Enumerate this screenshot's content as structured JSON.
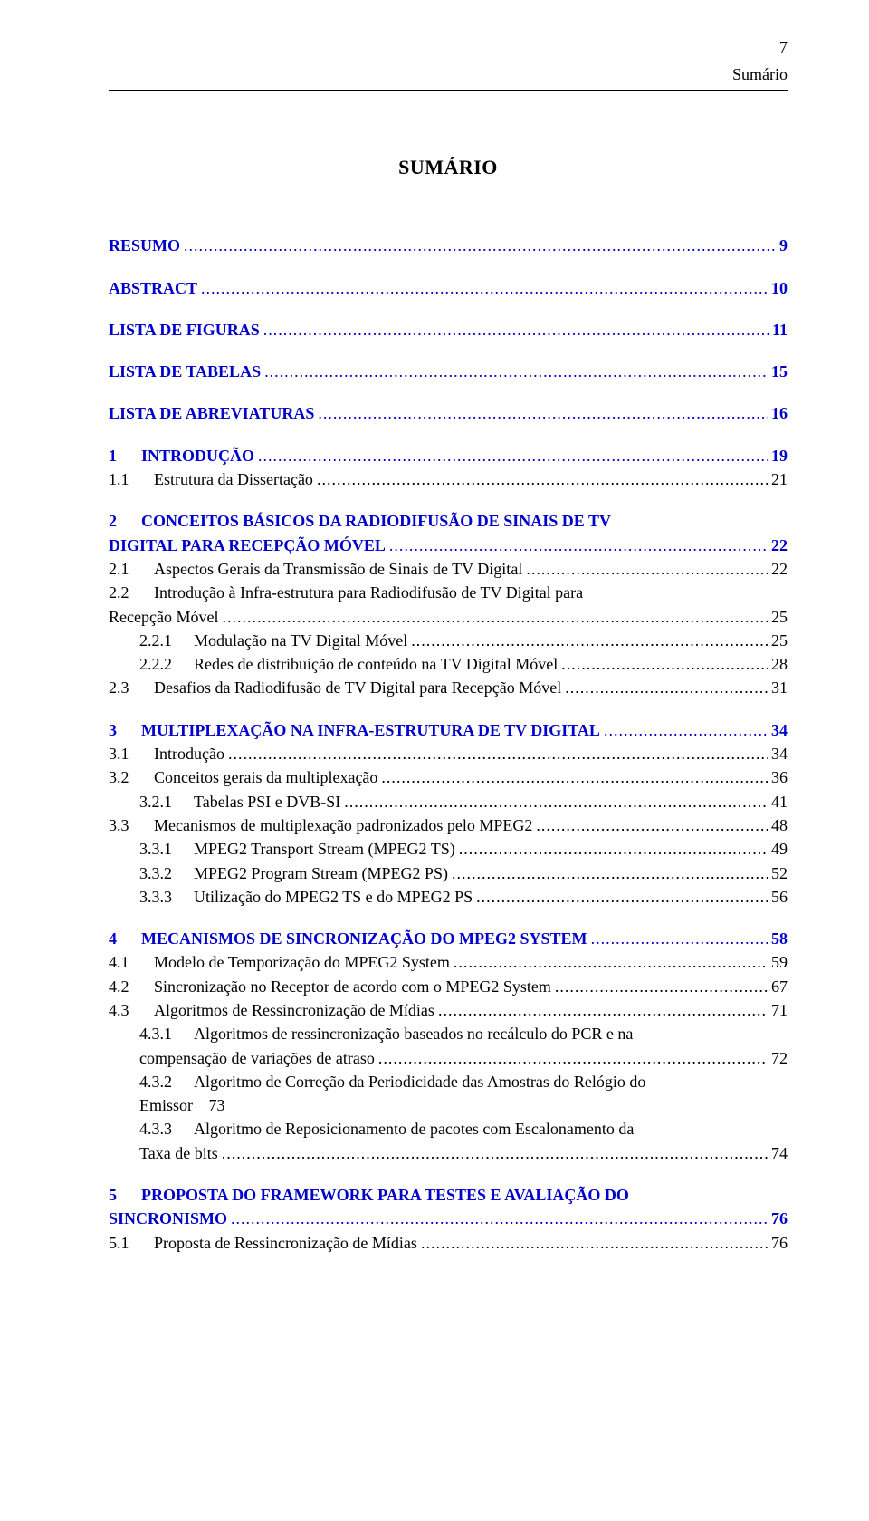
{
  "page_number": "7",
  "running_head": "Sumário",
  "title": "SUMÁRIO",
  "leader_char": ".",
  "entries": [
    {
      "level": 1,
      "style": "blue",
      "num": "",
      "text": "RESUMO",
      "page": "9",
      "gap_before": false
    },
    {
      "level": 1,
      "style": "blue",
      "num": "",
      "text": "ABSTRACT",
      "page": "10",
      "gap_before": true
    },
    {
      "level": 1,
      "style": "blue",
      "num": "",
      "text": "LISTA DE FIGURAS",
      "page": "11",
      "gap_before": true
    },
    {
      "level": 1,
      "style": "blue",
      "num": "",
      "text": "LISTA DE TABELAS",
      "page": "15",
      "gap_before": true
    },
    {
      "level": 1,
      "style": "blue",
      "num": "",
      "text": "LISTA DE ABREVIATURAS",
      "page": "16",
      "gap_before": true
    },
    {
      "level": 1,
      "style": "blue",
      "num": "1",
      "text": "INTRODUÇÃO",
      "page": "19",
      "gap_before": true
    },
    {
      "level": 2,
      "style": "plain",
      "num": "1.1",
      "text": "Estrutura da Dissertação",
      "page": "21",
      "gap_before": false
    },
    {
      "level": 1,
      "style": "blue",
      "num": "2",
      "text": "CONCEITOS BÁSICOS DA RADIODIFUSÃO DE SINAIS DE TV DIGITAL PARA RECEPÇÃO MÓVEL",
      "page": "22",
      "gap_before": true,
      "wrap": true
    },
    {
      "level": 2,
      "style": "plain",
      "num": "2.1",
      "text": "Aspectos Gerais da Transmissão de Sinais de TV Digital",
      "page": "22",
      "gap_before": false
    },
    {
      "level": 2,
      "style": "plain",
      "num": "2.2",
      "text": "Introdução à Infra-estrutura para Radiodifusão de TV Digital para Recepção Móvel",
      "page": "25",
      "gap_before": false,
      "wrap": true
    },
    {
      "level": 3,
      "style": "plain",
      "num": "2.2.1",
      "text": "Modulação na TV Digital Móvel",
      "page": "25",
      "gap_before": false
    },
    {
      "level": 3,
      "style": "plain",
      "num": "2.2.2",
      "text": "Redes de distribuição de conteúdo na TV Digital Móvel",
      "page": "28",
      "gap_before": false
    },
    {
      "level": 2,
      "style": "plain",
      "num": "2.3",
      "text": "Desafios da Radiodifusão de TV Digital para Recepção Móvel",
      "page": "31",
      "gap_before": false
    },
    {
      "level": 1,
      "style": "blue",
      "num": "3",
      "text": "MULTIPLEXAÇÃO NA INFRA-ESTRUTURA DE TV DIGITAL",
      "page": "34",
      "gap_before": true
    },
    {
      "level": 2,
      "style": "plain",
      "num": "3.1",
      "text": "Introdução",
      "page": "34",
      "gap_before": false
    },
    {
      "level": 2,
      "style": "plain",
      "num": "3.2",
      "text": "Conceitos gerais da multiplexação",
      "page": "36",
      "gap_before": false
    },
    {
      "level": 3,
      "style": "plain",
      "num": "3.2.1",
      "text": "Tabelas PSI e DVB-SI",
      "page": "41",
      "gap_before": false
    },
    {
      "level": 2,
      "style": "plain",
      "num": "3.3",
      "text": "Mecanismos de multiplexação padronizados pelo MPEG2",
      "page": "48",
      "gap_before": false
    },
    {
      "level": 3,
      "style": "plain",
      "num": "3.3.1",
      "text": "MPEG2 Transport Stream (MPEG2 TS)",
      "page": "49",
      "gap_before": false
    },
    {
      "level": 3,
      "style": "plain",
      "num": "3.3.2",
      "text": "MPEG2 Program Stream (MPEG2 PS)",
      "page": "52",
      "gap_before": false
    },
    {
      "level": 3,
      "style": "plain",
      "num": "3.3.3",
      "text": "Utilização do MPEG2 TS e do MPEG2 PS",
      "page": "56",
      "gap_before": false
    },
    {
      "level": 1,
      "style": "blue",
      "num": "4",
      "text": "MECANISMOS DE SINCRONIZAÇÃO DO MPEG2 SYSTEM",
      "page": "58",
      "gap_before": true
    },
    {
      "level": 2,
      "style": "plain",
      "num": "4.1",
      "text": "Modelo de Temporização do MPEG2 System",
      "page": "59",
      "gap_before": false
    },
    {
      "level": 2,
      "style": "plain",
      "num": "4.2",
      "text": "Sincronização no Receptor de acordo com o MPEG2 System",
      "page": "67",
      "gap_before": false
    },
    {
      "level": 2,
      "style": "plain",
      "num": "4.3",
      "text": "Algoritmos de Ressincronização de Mídias",
      "page": "71",
      "gap_before": false
    },
    {
      "level": 3,
      "style": "plain",
      "num": "4.3.1",
      "text": "Algoritmos de ressincronização baseados no recálculo do PCR e na compensação de variações de atraso",
      "page": "72",
      "gap_before": false,
      "wrap": true
    },
    {
      "level": 3,
      "style": "plain",
      "num": "4.3.2",
      "text": "Algoritmo de Correção da Periodicidade das Amostras do Relógio do Emissor",
      "page": "73",
      "gap_before": false,
      "wrap": true,
      "no_leader": true
    },
    {
      "level": 3,
      "style": "plain",
      "num": "4.3.3",
      "text": "Algoritmo de Reposicionamento de pacotes com Escalonamento da Taxa de bits",
      "page": "74",
      "gap_before": false,
      "wrap": true
    },
    {
      "level": 1,
      "style": "blue",
      "num": "5",
      "text": "PROPOSTA DO FRAMEWORK PARA TESTES E AVALIAÇÃO DO SINCRONISMO",
      "page": "76",
      "gap_before": true,
      "wrap": true
    },
    {
      "level": 2,
      "style": "plain",
      "num": "5.1",
      "text": "Proposta de Ressincronização de Mídias",
      "page": "76",
      "gap_before": false
    }
  ],
  "num_pad": {
    "l1": "36px",
    "l2": "50px",
    "l3": "60px"
  },
  "colors": {
    "blue": "#0000cc",
    "text": "#000000",
    "background": "#ffffff"
  },
  "fontsizes": {
    "body": 18,
    "title": 22
  }
}
